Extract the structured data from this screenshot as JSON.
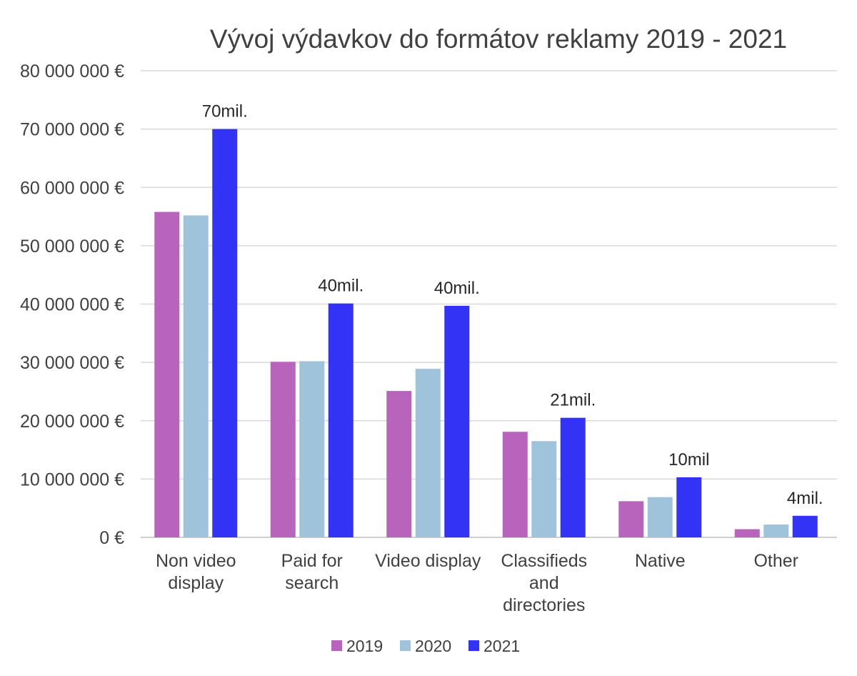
{
  "chart_data": {
    "type": "bar",
    "title": "Vývoj výdavkov do formátov reklamy 2019 - 2021",
    "categories": [
      [
        "Non video",
        "display"
      ],
      [
        "Paid for",
        "search"
      ],
      [
        "Video display"
      ],
      [
        "Classifieds",
        "and",
        "directories"
      ],
      [
        "Native"
      ],
      [
        "Other"
      ]
    ],
    "series": [
      {
        "name": "2019",
        "color": "#b964bc",
        "values": [
          55800000,
          30100000,
          25100000,
          18100000,
          6200000,
          1400000
        ]
      },
      {
        "name": "2020",
        "color": "#9fc3da",
        "values": [
          55200000,
          30200000,
          28900000,
          16500000,
          6900000,
          2200000
        ]
      },
      {
        "name": "2021",
        "color": "#3333f5",
        "values": [
          70000000,
          40100000,
          39700000,
          20500000,
          10300000,
          3700000
        ]
      }
    ],
    "data_labels": [
      "70mil.",
      "40mil.",
      "40mil.",
      "21mil.",
      "10mil",
      "4mil."
    ],
    "ylim": [
      0,
      80000000
    ],
    "yticks": [
      {
        "value": 0,
        "label": "0 €"
      },
      {
        "value": 10000000,
        "label": "10 000 000 €"
      },
      {
        "value": 20000000,
        "label": "20 000 000 €"
      },
      {
        "value": 30000000,
        "label": "30 000 000 €"
      },
      {
        "value": 40000000,
        "label": "40 000 000 €"
      },
      {
        "value": 50000000,
        "label": "50 000 000 €"
      },
      {
        "value": 60000000,
        "label": "60 000 000 €"
      },
      {
        "value": 70000000,
        "label": "70 000 000 €"
      },
      {
        "value": 80000000,
        "label": "80 000 000 €"
      }
    ],
    "grid": true,
    "legend_position": "bottom"
  }
}
